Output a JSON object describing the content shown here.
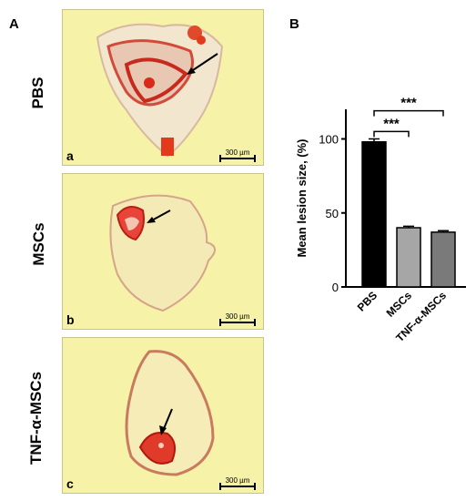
{
  "panels": {
    "a_label": "A",
    "b_label": "B"
  },
  "micrographs": [
    {
      "row_label": "PBS",
      "sub_label": "a",
      "scale_label": "300 µm"
    },
    {
      "row_label": "MSCs",
      "sub_label": "b",
      "scale_label": "300 µm"
    },
    {
      "row_label": "TNF-α-MSCs",
      "sub_label": "c",
      "scale_label": "300 µm"
    }
  ],
  "chart_data": {
    "type": "bar",
    "categories": [
      "PBS",
      "MSCs",
      "TNF-α-MSCs"
    ],
    "values": [
      98,
      40,
      37
    ],
    "errors": [
      2,
      1,
      1
    ],
    "bar_colors": [
      "#000000",
      "#a6a6a6",
      "#7a7a7a"
    ],
    "ylabel": "Mean lesion size, (%)",
    "ylim": [
      0,
      120
    ],
    "yticks": [
      0,
      50,
      100
    ],
    "grid": false,
    "significance": [
      {
        "from": 0,
        "to": 1,
        "label": "***"
      },
      {
        "from": 0,
        "to": 2,
        "label": "***"
      }
    ]
  }
}
